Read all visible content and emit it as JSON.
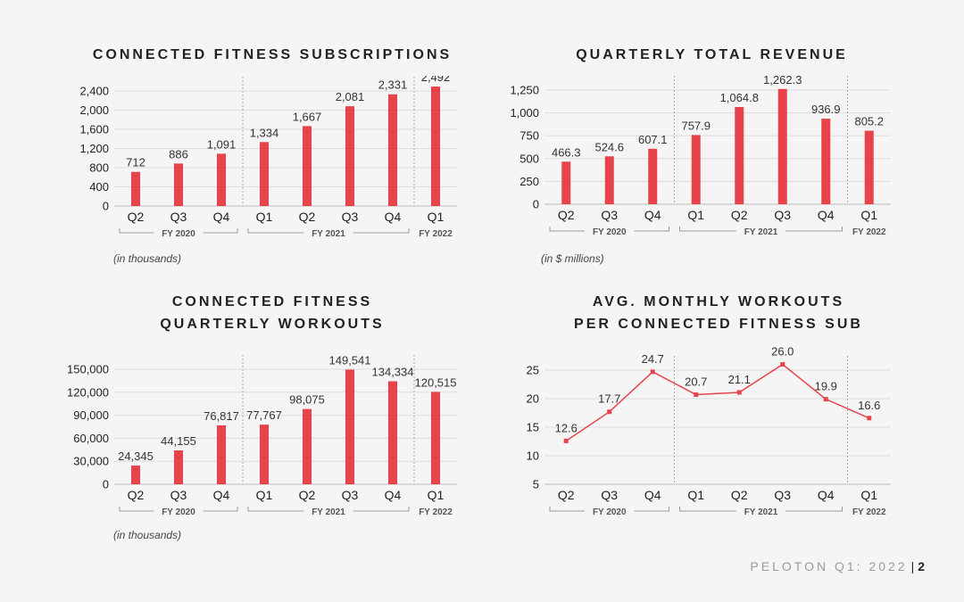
{
  "colors": {
    "bar": "#e8424a",
    "line": "#e8424a",
    "axis": "#222222",
    "grid": "#dddddd",
    "group": "#999999"
  },
  "footer": {
    "brand": "PELOTON Q1: 2022",
    "separator": "|",
    "page": "2"
  },
  "chart_data": [
    {
      "type": "bar",
      "title_lines": [
        "CONNECTED FITNESS SUBSCRIPTIONS"
      ],
      "unit_note": "(in thousands)",
      "categories": [
        "Q2",
        "Q3",
        "Q4",
        "Q1",
        "Q2",
        "Q3",
        "Q4",
        "Q1"
      ],
      "values": [
        712,
        886,
        1091,
        1334,
        1667,
        2081,
        2331,
        2492
      ],
      "value_labels": [
        "712",
        "886",
        "1,091",
        "1,334",
        "1,667",
        "2,081",
        "2,331",
        "2,492"
      ],
      "ylim": [
        0,
        2400
      ],
      "yticks": [
        0,
        400,
        800,
        1200,
        1600,
        2000,
        2400
      ],
      "ytick_labels": [
        "0",
        "400",
        "800",
        "1,200",
        "1,600",
        "2,000",
        "2,400"
      ],
      "groups": [
        {
          "label": "FY 2020",
          "start": 0,
          "end": 2
        },
        {
          "label": "FY 2021",
          "start": 3,
          "end": 6
        },
        {
          "label": "FY 2022",
          "start": 7,
          "end": 7
        }
      ]
    },
    {
      "type": "bar",
      "title_lines": [
        "QUARTERLY TOTAL REVENUE"
      ],
      "unit_note": "(in $ millions)",
      "categories": [
        "Q2",
        "Q3",
        "Q4",
        "Q1",
        "Q2",
        "Q3",
        "Q4",
        "Q1"
      ],
      "values": [
        466.3,
        524.6,
        607.1,
        757.9,
        1064.8,
        1262.3,
        936.9,
        805.2
      ],
      "value_labels": [
        "466.3",
        "524.6",
        "607.1",
        "757.9",
        "1,064.8",
        "1,262.3",
        "936.9",
        "805.2"
      ],
      "ylim": [
        0,
        1250
      ],
      "yticks": [
        0,
        250,
        500,
        750,
        1000,
        1250
      ],
      "ytick_labels": [
        "0",
        "250",
        "500",
        "750",
        "1,000",
        "1,250"
      ],
      "groups": [
        {
          "label": "FY 2020",
          "start": 0,
          "end": 2
        },
        {
          "label": "FY 2021",
          "start": 3,
          "end": 6
        },
        {
          "label": "FY 2022",
          "start": 7,
          "end": 7
        }
      ]
    },
    {
      "type": "bar",
      "title_lines": [
        "CONNECTED FITNESS",
        "QUARTERLY WORKOUTS"
      ],
      "unit_note": "(in thousands)",
      "categories": [
        "Q2",
        "Q3",
        "Q4",
        "Q1",
        "Q2",
        "Q3",
        "Q4",
        "Q1"
      ],
      "values": [
        24345,
        44155,
        76817,
        77767,
        98075,
        149541,
        134334,
        120515
      ],
      "value_labels": [
        "24,345",
        "44,155",
        "76,817",
        "77,767",
        "98,075",
        "149,541",
        "134,334",
        "120,515"
      ],
      "ylim": [
        0,
        150000
      ],
      "yticks": [
        0,
        30000,
        60000,
        90000,
        120000,
        150000
      ],
      "ytick_labels": [
        "0",
        "30,000",
        "60,000",
        "90,000",
        "120,000",
        "150,000"
      ],
      "groups": [
        {
          "label": "FY 2020",
          "start": 0,
          "end": 2
        },
        {
          "label": "FY 2021",
          "start": 3,
          "end": 6
        },
        {
          "label": "FY 2022",
          "start": 7,
          "end": 7
        }
      ]
    },
    {
      "type": "line",
      "title_lines": [
        "AVG. MONTHLY WORKOUTS",
        "PER CONNECTED FITNESS SUB"
      ],
      "unit_note": "",
      "categories": [
        "Q2",
        "Q3",
        "Q4",
        "Q1",
        "Q2",
        "Q3",
        "Q4",
        "Q1"
      ],
      "values": [
        12.6,
        17.7,
        24.7,
        20.7,
        21.1,
        26.0,
        19.9,
        16.6
      ],
      "value_labels": [
        "12.6",
        "17.7",
        "24.7",
        "20.7",
        "21.1",
        "26.0",
        "19.9",
        "16.6"
      ],
      "ylim": [
        5,
        25
      ],
      "yticks": [
        5,
        10,
        15,
        20,
        25
      ],
      "ytick_labels": [
        "5",
        "10",
        "15",
        "20",
        "25"
      ],
      "groups": [
        {
          "label": "FY 2020",
          "start": 0,
          "end": 2
        },
        {
          "label": "FY 2021",
          "start": 3,
          "end": 6
        },
        {
          "label": "FY 2022",
          "start": 7,
          "end": 7
        }
      ]
    }
  ]
}
